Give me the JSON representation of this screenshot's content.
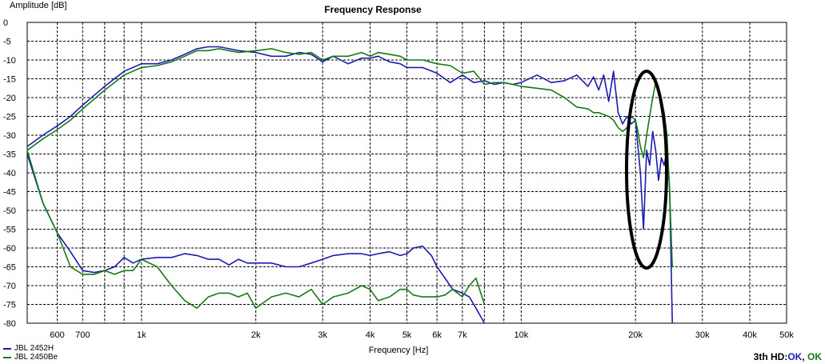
{
  "chart_data": {
    "type": "line",
    "title": "Frequency Response",
    "ylabel": "Amplitude [dB]",
    "xlabel": "Frequency [Hz]",
    "xscale": "log",
    "xlim": [
      500,
      50000
    ],
    "ylim": [
      -80,
      0
    ],
    "grid": true,
    "legend_position": "bottom-left",
    "y_ticks": [
      0,
      -5,
      -10,
      -15,
      -20,
      -25,
      -30,
      -35,
      -40,
      -45,
      -50,
      -55,
      -60,
      -65,
      -70,
      -75,
      -80
    ],
    "x_ticks": [
      {
        "v": 600,
        "label": "600"
      },
      {
        "v": 700,
        "label": "700"
      },
      {
        "v": 1000,
        "label": "1k"
      },
      {
        "v": 2000,
        "label": "2k"
      },
      {
        "v": 3000,
        "label": "3k"
      },
      {
        "v": 4000,
        "label": "4k"
      },
      {
        "v": 5000,
        "label": "5k"
      },
      {
        "v": 6000,
        "label": "6k"
      },
      {
        "v": 7000,
        "label": "7k"
      },
      {
        "v": 10000,
        "label": "10k"
      },
      {
        "v": 20000,
        "label": "20k"
      },
      {
        "v": 30000,
        "label": "30k"
      },
      {
        "v": 40000,
        "label": "40k"
      },
      {
        "v": 50000,
        "label": "50k"
      }
    ],
    "series": [
      {
        "name": "JBL 2452H",
        "role": "fundamental",
        "color": "#1b1bb0",
        "x": [
          500,
          550,
          600,
          650,
          700,
          800,
          900,
          1000,
          1100,
          1200,
          1300,
          1400,
          1500,
          1600,
          1700,
          1800,
          2000,
          2200,
          2400,
          2600,
          2800,
          3000,
          3200,
          3500,
          3800,
          4000,
          4200,
          4500,
          4800,
          5000,
          5500,
          6000,
          6500,
          7000,
          7500,
          8000,
          8500,
          9000,
          9500,
          10000,
          11000,
          12000,
          13000,
          14000,
          15000,
          15500,
          16000,
          16500,
          17000,
          17500,
          18000,
          18500,
          19000,
          19500,
          20000,
          20300,
          20600,
          21000,
          21400,
          21800,
          22200,
          22600,
          23000,
          23400,
          23800,
          24200,
          24600,
          25000
        ],
        "y": [
          -33,
          -30,
          -27.5,
          -25,
          -22,
          -17,
          -13,
          -11,
          -11,
          -10,
          -8.5,
          -7,
          -6.5,
          -6.5,
          -7,
          -7.5,
          -8,
          -9,
          -9,
          -8,
          -8.5,
          -10.5,
          -9,
          -11,
          -9.5,
          -9.5,
          -9,
          -10.5,
          -11,
          -12,
          -12,
          -13.5,
          -16,
          -14,
          -16,
          -15.5,
          -16.5,
          -16,
          -16.5,
          -16,
          -14,
          -16,
          -15.5,
          -14,
          -17,
          -14.5,
          -18,
          -14,
          -21,
          -13,
          -24,
          -27,
          -25,
          -27,
          -26,
          -33,
          -40,
          -55,
          -34,
          -38,
          -29,
          -34,
          -42,
          -36,
          -38,
          -34,
          -44,
          -80
        ]
      },
      {
        "name": "JBL 2450Be",
        "role": "fundamental",
        "color": "#157a15",
        "x": [
          500,
          550,
          600,
          650,
          700,
          800,
          900,
          1000,
          1100,
          1200,
          1300,
          1400,
          1500,
          1600,
          1700,
          1800,
          2000,
          2200,
          2400,
          2600,
          2800,
          3000,
          3200,
          3500,
          3800,
          4000,
          4200,
          4500,
          4800,
          5000,
          5500,
          6000,
          6500,
          7000,
          7500,
          8000,
          8500,
          9000,
          9500,
          10000,
          11000,
          12000,
          13000,
          14000,
          15000,
          15500,
          16000,
          16500,
          17000,
          17500,
          18000,
          18500,
          19000,
          19500,
          20000,
          20300,
          20600,
          21000,
          21400,
          21800,
          22200,
          22600,
          23000,
          23400,
          23800,
          24200,
          24600,
          25000
        ],
        "y": [
          -34,
          -31,
          -28.5,
          -26,
          -23,
          -18,
          -14,
          -12,
          -11.5,
          -10.5,
          -9,
          -7.5,
          -7.5,
          -7,
          -7.5,
          -8,
          -7.5,
          -7,
          -8,
          -8.5,
          -8,
          -10,
          -9,
          -9,
          -8,
          -9,
          -8,
          -8.5,
          -9,
          -10,
          -10,
          -11,
          -11.5,
          -13.5,
          -13,
          -16.5,
          -16,
          -16,
          -16.5,
          -17,
          -17.5,
          -18,
          -20,
          -22.5,
          -23,
          -24,
          -24,
          -24.5,
          -25,
          -26,
          -28,
          -29,
          -28,
          -25,
          -26,
          -29,
          -33,
          -36,
          -30,
          -25,
          -20,
          -16,
          -18,
          -21,
          -24,
          -30,
          -45,
          -65
        ]
      },
      {
        "name": "JBL 2452H",
        "role": "3rd harmonic",
        "color": "#1b1bb0",
        "x": [
          500,
          550,
          600,
          650,
          700,
          750,
          800,
          850,
          900,
          950,
          1000,
          1100,
          1200,
          1300,
          1400,
          1500,
          1600,
          1700,
          1800,
          1900,
          2000,
          2200,
          2400,
          2600,
          2800,
          3000,
          3200,
          3500,
          3800,
          4000,
          4200,
          4500,
          4800,
          5000,
          5200,
          5500,
          5800,
          6000,
          6300,
          6600,
          7000,
          7300,
          7600,
          8000
        ],
        "y": [
          -35,
          -48,
          -56,
          -61,
          -66,
          -66.5,
          -66,
          -65,
          -62.5,
          -64,
          -63,
          -62.5,
          -62.5,
          -61.5,
          -62,
          -63,
          -63,
          -64.5,
          -63,
          -64,
          -64,
          -64,
          -65,
          -65,
          -64,
          -63,
          -62,
          -61.5,
          -61.5,
          -62,
          -61.5,
          -61,
          -62,
          -61.5,
          -60,
          -59.5,
          -62,
          -65,
          -68,
          -71,
          -72,
          -73,
          -76,
          -80
        ]
      },
      {
        "name": "JBL 2450Be",
        "role": "3rd harmonic",
        "color": "#157a15",
        "x": [
          500,
          550,
          600,
          650,
          700,
          750,
          800,
          850,
          900,
          950,
          1000,
          1100,
          1200,
          1300,
          1400,
          1500,
          1600,
          1700,
          1800,
          1900,
          2000,
          2200,
          2400,
          2600,
          2800,
          3000,
          3200,
          3500,
          3800,
          4000,
          4200,
          4500,
          4800,
          5000,
          5200,
          5500,
          5800,
          6000,
          6300,
          6600,
          7000,
          7300,
          7600,
          8000
        ],
        "y": [
          -34,
          -48,
          -56,
          -65,
          -67,
          -67,
          -66,
          -67,
          -66,
          -66,
          -63,
          -65,
          -70,
          -74,
          -76,
          -73,
          -72,
          -72,
          -73,
          -72,
          -76,
          -73,
          -72,
          -73,
          -71,
          -75,
          -73,
          -72,
          -70,
          -71,
          -74,
          -73,
          -71,
          -71,
          -72.5,
          -73,
          -73,
          -73,
          -72.5,
          -71,
          -73,
          -70,
          -68,
          -75
        ]
      }
    ]
  },
  "legend": {
    "items": [
      {
        "label": "JBL 2452H",
        "color": "#1b1bb0"
      },
      {
        "label": "JBL 2450Be",
        "color": "#157a15"
      }
    ]
  },
  "status": {
    "label": "3th HD:",
    "ok1": "OK",
    "sep": ", ",
    "ok2": "OK"
  }
}
